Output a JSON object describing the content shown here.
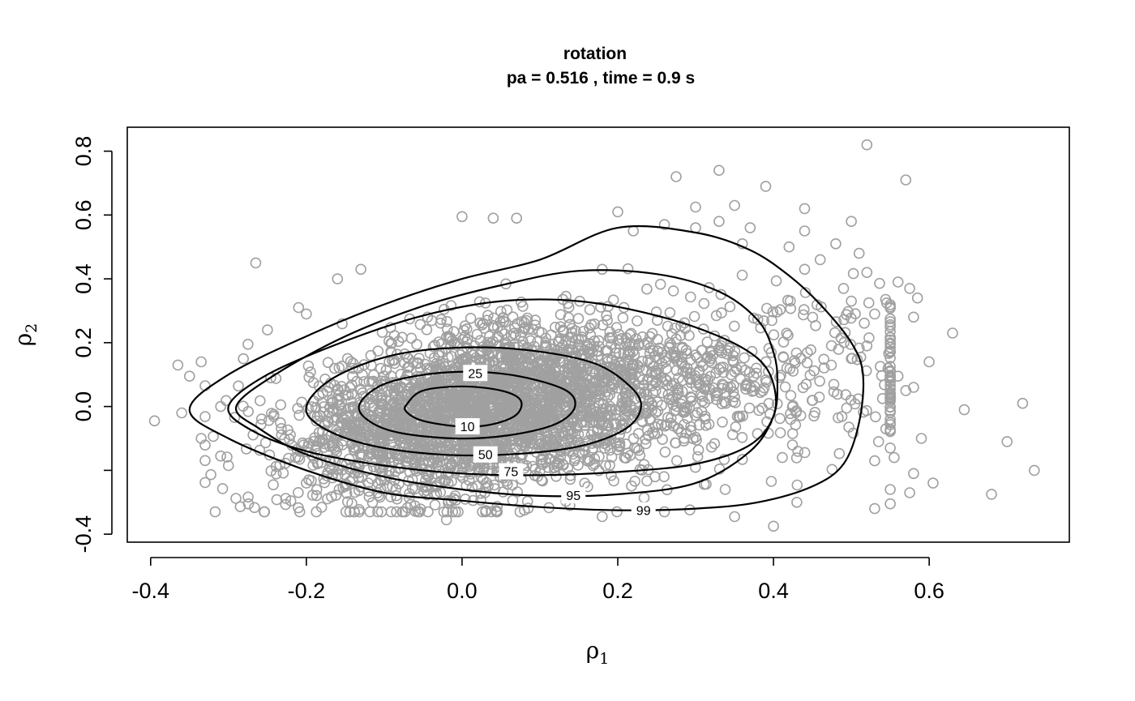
{
  "chart_data": {
    "type": "scatter",
    "title": "rotation",
    "subtitle": "pa =  0.516 , time =  0.9 s",
    "xlabel": {
      "base": "ρ",
      "sub": "1"
    },
    "ylabel": {
      "base": "ρ",
      "sub": "2"
    },
    "xlim": [
      -0.43,
      0.78
    ],
    "ylim": [
      -0.425,
      0.875
    ],
    "xticks": [
      -0.4,
      -0.2,
      0.0,
      0.2,
      0.4,
      0.6
    ],
    "xtick_labels": [
      "-0.4",
      "-0.2",
      "0.0",
      "0.2",
      "0.4",
      "0.6"
    ],
    "yticks": [
      -0.4,
      -0.2,
      0.0,
      0.2,
      0.4,
      0.6,
      0.8
    ],
    "ytick_labels": [
      "-0.4",
      "",
      "0.0",
      "0.2",
      "0.4",
      "0.6",
      "0.8"
    ],
    "grid": false,
    "point_color": "#a0a0a0",
    "contour_color": "#000000",
    "contours": [
      {
        "level": "10",
        "label_at": [
          0.007,
          -0.062
        ],
        "path": [
          [
            -0.07,
            0.01
          ],
          [
            -0.05,
            0.05
          ],
          [
            0.0,
            0.063
          ],
          [
            0.05,
            0.05
          ],
          [
            0.075,
            0.02
          ],
          [
            0.07,
            -0.025
          ],
          [
            0.04,
            -0.055
          ],
          [
            0.0,
            -0.063
          ],
          [
            -0.05,
            -0.045
          ],
          [
            -0.072,
            -0.015
          ]
        ]
      },
      {
        "level": "25",
        "label_at": [
          0.017,
          0.105
        ],
        "path": [
          [
            -0.13,
            0.015
          ],
          [
            -0.095,
            0.075
          ],
          [
            -0.02,
            0.107
          ],
          [
            0.06,
            0.1
          ],
          [
            0.13,
            0.055
          ],
          [
            0.145,
            0.0
          ],
          [
            0.12,
            -0.055
          ],
          [
            0.06,
            -0.09
          ],
          [
            -0.01,
            -0.1
          ],
          [
            -0.085,
            -0.08
          ],
          [
            -0.125,
            -0.035
          ]
        ]
      },
      {
        "level": "50",
        "label_at": [
          0.03,
          -0.15
        ],
        "path": [
          [
            -0.2,
            0.0
          ],
          [
            -0.165,
            0.09
          ],
          [
            -0.09,
            0.16
          ],
          [
            0.0,
            0.185
          ],
          [
            0.09,
            0.175
          ],
          [
            0.17,
            0.135
          ],
          [
            0.215,
            0.065
          ],
          [
            0.23,
            0.0
          ],
          [
            0.21,
            -0.07
          ],
          [
            0.15,
            -0.125
          ],
          [
            0.06,
            -0.15
          ],
          [
            -0.03,
            -0.15
          ],
          [
            -0.12,
            -0.12
          ],
          [
            -0.18,
            -0.065
          ]
        ]
      },
      {
        "level": "75",
        "label_at": [
          0.063,
          -0.203
        ],
        "path": [
          [
            -0.3,
            0.0
          ],
          [
            -0.25,
            0.1
          ],
          [
            -0.15,
            0.205
          ],
          [
            -0.05,
            0.285
          ],
          [
            0.05,
            0.33
          ],
          [
            0.15,
            0.33
          ],
          [
            0.25,
            0.285
          ],
          [
            0.33,
            0.22
          ],
          [
            0.38,
            0.15
          ],
          [
            0.4,
            0.07
          ],
          [
            0.4,
            -0.03
          ],
          [
            0.37,
            -0.12
          ],
          [
            0.3,
            -0.18
          ],
          [
            0.2,
            -0.205
          ],
          [
            0.1,
            -0.215
          ],
          [
            0.0,
            -0.21
          ],
          [
            -0.1,
            -0.185
          ],
          [
            -0.2,
            -0.14
          ],
          [
            -0.27,
            -0.075
          ]
        ]
      },
      {
        "level": "95",
        "label_at": [
          0.143,
          -0.278
        ],
        "path": [
          [
            -0.29,
            0.0
          ],
          [
            -0.24,
            0.1
          ],
          [
            -0.15,
            0.22
          ],
          [
            -0.05,
            0.315
          ],
          [
            0.05,
            0.38
          ],
          [
            0.15,
            0.425
          ],
          [
            0.25,
            0.415
          ],
          [
            0.33,
            0.36
          ],
          [
            0.38,
            0.27
          ],
          [
            0.4,
            0.17
          ],
          [
            0.405,
            0.08
          ],
          [
            0.4,
            -0.03
          ],
          [
            0.37,
            -0.14
          ],
          [
            0.3,
            -0.24
          ],
          [
            0.2,
            -0.275
          ],
          [
            0.1,
            -0.28
          ],
          [
            0.0,
            -0.26
          ],
          [
            -0.1,
            -0.22
          ],
          [
            -0.2,
            -0.15
          ],
          [
            -0.26,
            -0.07
          ]
        ]
      },
      {
        "level": "99",
        "label_at": [
          0.233,
          -0.325
        ],
        "path": [
          [
            -0.35,
            -0.01
          ],
          [
            -0.3,
            0.1
          ],
          [
            -0.2,
            0.22
          ],
          [
            -0.1,
            0.32
          ],
          [
            0.0,
            0.4
          ],
          [
            0.1,
            0.46
          ],
          [
            0.2,
            0.56
          ],
          [
            0.3,
            0.545
          ],
          [
            0.37,
            0.49
          ],
          [
            0.42,
            0.41
          ],
          [
            0.46,
            0.32
          ],
          [
            0.5,
            0.2
          ],
          [
            0.515,
            0.1
          ],
          [
            0.51,
            -0.05
          ],
          [
            0.49,
            -0.18
          ],
          [
            0.45,
            -0.25
          ],
          [
            0.38,
            -0.3
          ],
          [
            0.3,
            -0.32
          ],
          [
            0.2,
            -0.325
          ],
          [
            0.1,
            -0.315
          ],
          [
            0.0,
            -0.295
          ],
          [
            -0.1,
            -0.27
          ],
          [
            -0.2,
            -0.2
          ],
          [
            -0.3,
            -0.1
          ]
        ]
      }
    ],
    "outlier_points": [
      [
        0.52,
        0.82
      ],
      [
        0.33,
        0.74
      ],
      [
        0.275,
        0.72
      ],
      [
        0.57,
        0.71
      ],
      [
        0.39,
        0.69
      ],
      [
        -0.395,
        -0.045
      ],
      [
        -0.365,
        0.13
      ],
      [
        -0.265,
        0.45
      ],
      [
        0.0,
        0.595
      ],
      [
        0.07,
        0.59
      ],
      [
        0.04,
        0.59
      ],
      [
        0.2,
        0.61
      ],
      [
        0.3,
        0.625
      ],
      [
        0.35,
        0.63
      ],
      [
        0.44,
        0.62
      ],
      [
        0.5,
        0.58
      ],
      [
        0.37,
        0.56
      ],
      [
        0.52,
        0.42
      ],
      [
        0.56,
        0.39
      ],
      [
        0.575,
        0.37
      ],
      [
        0.585,
        0.34
      ],
      [
        0.53,
        0.29
      ],
      [
        0.58,
        0.28
      ],
      [
        0.63,
        0.23
      ],
      [
        0.6,
        0.14
      ],
      [
        0.56,
        0.095
      ],
      [
        0.58,
        0.06
      ],
      [
        0.57,
        0.05
      ],
      [
        0.645,
        -0.01
      ],
      [
        0.72,
        0.01
      ],
      [
        0.7,
        -0.11
      ],
      [
        0.735,
        -0.2
      ],
      [
        0.68,
        -0.275
      ],
      [
        0.605,
        -0.24
      ],
      [
        0.58,
        -0.21
      ],
      [
        0.59,
        -0.1
      ],
      [
        0.555,
        -0.16
      ],
      [
        0.53,
        -0.17
      ],
      [
        0.55,
        -0.13
      ],
      [
        0.535,
        -0.11
      ],
      [
        0.55,
        -0.26
      ],
      [
        0.575,
        -0.27
      ],
      [
        0.53,
        -0.32
      ],
      [
        0.55,
        -0.305
      ],
      [
        0.43,
        -0.3
      ],
      [
        0.4,
        -0.375
      ],
      [
        0.35,
        -0.345
      ],
      [
        0.26,
        -0.33
      ],
      [
        0.18,
        -0.345
      ],
      [
        0.08,
        -0.325
      ],
      [
        -0.02,
        -0.355
      ],
      [
        0.44,
        0.55
      ],
      [
        0.48,
        0.51
      ],
      [
        0.51,
        0.48
      ],
      [
        0.46,
        0.46
      ],
      [
        0.49,
        0.37
      ],
      [
        0.5,
        0.33
      ],
      [
        0.52,
        0.19
      ],
      [
        0.5,
        0.15
      ],
      [
        -0.335,
        0.14
      ],
      [
        -0.35,
        0.095
      ],
      [
        -0.33,
        0.065
      ],
      [
        -0.31,
        0.0
      ],
      [
        -0.36,
        -0.02
      ],
      [
        -0.335,
        -0.1
      ],
      [
        -0.3,
        -0.185
      ],
      [
        -0.31,
        -0.155
      ],
      [
        -0.2,
        -0.24
      ],
      [
        -0.15,
        -0.25
      ],
      [
        -0.2,
        0.29
      ],
      [
        -0.16,
        0.4
      ],
      [
        -0.13,
        0.43
      ],
      [
        -0.21,
        0.31
      ],
      [
        -0.275,
        0.195
      ],
      [
        -0.25,
        0.24
      ],
      [
        0.18,
        0.43
      ],
      [
        0.22,
        0.55
      ],
      [
        0.26,
        0.57
      ],
      [
        0.3,
        0.56
      ],
      [
        0.33,
        0.58
      ],
      [
        0.36,
        0.51
      ],
      [
        0.42,
        0.5
      ],
      [
        0.44,
        0.43
      ]
    ],
    "cloud": {
      "n": 3400,
      "center": [
        0.05,
        0.02
      ],
      "seed": 7
    }
  }
}
